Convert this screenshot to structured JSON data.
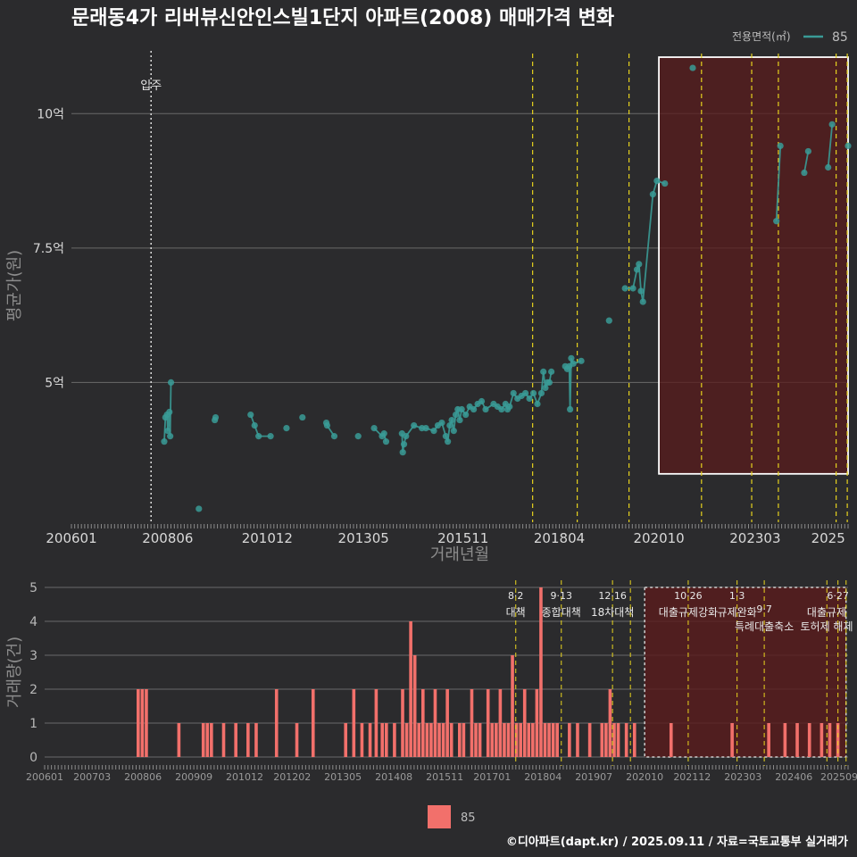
{
  "title": "문래동4가 리버뷰신안인스빌1단지 아파트(2008) 매매가격 변화",
  "caption": "©디아파트(dapt.kr) / 2025.09.11 / 자료=국토교통부 실거래가",
  "colors": {
    "price": "#3a9b96",
    "volume": "#f2706b",
    "policy": "#e6d21e",
    "shade": "#5a1c1c"
  },
  "legend_top": {
    "title": "전용면적(㎡)",
    "label": "85"
  },
  "legend_bottom": {
    "label": "85"
  },
  "chart_data": [
    {
      "type": "scatter",
      "xlabel": "거래년월",
      "ylabel": "평균가(원)",
      "x_ticks": [
        "200601",
        "200806",
        "201012",
        "201305",
        "201511",
        "201804",
        "202010",
        "202303",
        "2025"
      ],
      "y_ticks": [
        {
          "value": 5,
          "label": "5억"
        },
        {
          "value": 7.5,
          "label": "7.5억"
        },
        {
          "value": 10,
          "label": "10억"
        }
      ],
      "ylim": [
        2.4,
        11.2
      ],
      "move_in": {
        "x": 2008.0,
        "label": "입주"
      },
      "policy_lines": [
        2017.58,
        2018.7,
        2020.0,
        2021.82,
        2023.08,
        2023.75,
        2025.2,
        2025.48
      ],
      "highlight_box": {
        "x_from": 2020.75,
        "x_to": 2025.5,
        "y_from": 3.3,
        "y_to": 11.05
      },
      "series": [
        {
          "name": "85",
          "points": [
            [
              2008.33,
              3.9
            ],
            [
              2008.36,
              4.35
            ],
            [
              2008.4,
              4.4
            ],
            [
              2008.42,
              4.1
            ],
            [
              2008.46,
              4.45
            ],
            [
              2008.48,
              4.0
            ],
            [
              2008.5,
              5.0
            ],
            [
              2009.2,
              2.65
            ],
            [
              2009.6,
              4.3
            ],
            [
              2009.62,
              4.35
            ],
            [
              2010.5,
              4.4
            ],
            [
              2010.6,
              4.2
            ],
            [
              2010.7,
              4.0
            ],
            [
              2011.0,
              4.0
            ],
            [
              2011.4,
              4.15
            ],
            [
              2011.8,
              4.35
            ],
            [
              2012.4,
              4.25
            ],
            [
              2012.42,
              4.2
            ],
            [
              2012.6,
              4.0
            ],
            [
              2013.2,
              4.0
            ],
            [
              2013.6,
              4.15
            ],
            [
              2013.8,
              4.0
            ],
            [
              2013.85,
              4.05
            ],
            [
              2013.9,
              3.9
            ],
            [
              2014.3,
              4.05
            ],
            [
              2014.32,
              3.7
            ],
            [
              2014.35,
              3.85
            ],
            [
              2014.4,
              4.0
            ],
            [
              2014.6,
              4.2
            ],
            [
              2014.8,
              4.15
            ],
            [
              2014.9,
              4.15
            ],
            [
              2015.1,
              4.1
            ],
            [
              2015.2,
              4.2
            ],
            [
              2015.3,
              4.25
            ],
            [
              2015.4,
              4.0
            ],
            [
              2015.45,
              3.9
            ],
            [
              2015.5,
              4.2
            ],
            [
              2015.55,
              4.3
            ],
            [
              2015.6,
              4.1
            ],
            [
              2015.65,
              4.4
            ],
            [
              2015.7,
              4.5
            ],
            [
              2015.75,
              4.3
            ],
            [
              2015.8,
              4.5
            ],
            [
              2015.9,
              4.4
            ],
            [
              2016.0,
              4.55
            ],
            [
              2016.1,
              4.5
            ],
            [
              2016.2,
              4.6
            ],
            [
              2016.3,
              4.65
            ],
            [
              2016.4,
              4.5
            ],
            [
              2016.6,
              4.6
            ],
            [
              2016.7,
              4.55
            ],
            [
              2016.8,
              4.5
            ],
            [
              2016.9,
              4.6
            ],
            [
              2016.95,
              4.5
            ],
            [
              2017.0,
              4.55
            ],
            [
              2017.1,
              4.8
            ],
            [
              2017.2,
              4.7
            ],
            [
              2017.3,
              4.75
            ],
            [
              2017.4,
              4.8
            ],
            [
              2017.5,
              4.7
            ],
            [
              2017.6,
              4.8
            ],
            [
              2017.7,
              4.6
            ],
            [
              2017.8,
              4.8
            ],
            [
              2017.85,
              5.2
            ],
            [
              2017.9,
              4.9
            ],
            [
              2017.95,
              5.0
            ],
            [
              2018.0,
              5.0
            ],
            [
              2018.05,
              5.2
            ],
            [
              2018.4,
              5.3
            ],
            [
              2018.45,
              5.25
            ],
            [
              2018.5,
              5.3
            ],
            [
              2018.52,
              4.5
            ],
            [
              2018.55,
              5.45
            ],
            [
              2018.6,
              5.35
            ],
            [
              2018.8,
              5.4
            ],
            [
              2019.5,
              6.15
            ],
            [
              2019.9,
              6.75
            ],
            [
              2020.1,
              6.75
            ],
            [
              2020.2,
              7.1
            ],
            [
              2020.25,
              7.2
            ],
            [
              2020.3,
              6.7
            ],
            [
              2020.35,
              6.5
            ],
            [
              2020.6,
              8.5
            ],
            [
              2020.7,
              8.75
            ],
            [
              2020.9,
              8.7
            ],
            [
              2021.6,
              10.85
            ],
            [
              2023.7,
              8.0
            ],
            [
              2023.8,
              9.4
            ],
            [
              2024.4,
              8.9
            ],
            [
              2024.5,
              9.3
            ],
            [
              2025.0,
              9.0
            ],
            [
              2025.1,
              9.8
            ],
            [
              2025.5,
              9.4
            ]
          ]
        }
      ]
    },
    {
      "type": "bar",
      "xlabel": "",
      "ylabel": "거래량(건)",
      "x_ticks": [
        "200601",
        "200703",
        "200806",
        "200909",
        "201012",
        "201202",
        "201305",
        "201408",
        "201511",
        "201701",
        "201804",
        "201907",
        "202010",
        "202112",
        "202303",
        "202406",
        "202509"
      ],
      "y_ticks": [
        0,
        1,
        2,
        3,
        4,
        5
      ],
      "ylim": [
        0,
        5
      ],
      "highlight_box": {
        "x_from": 2020.75,
        "x_to": 2025.7,
        "y_from": 0,
        "y_to": 5
      },
      "policy_lines": [
        {
          "x": 2017.58,
          "date": "8·2",
          "label": "대책"
        },
        {
          "x": 2018.7,
          "date": "9·13",
          "label": "종합대책"
        },
        {
          "x": 2019.96,
          "date": "12·16",
          "label": "18차대책"
        },
        {
          "x": 2020.4,
          "date": "",
          "label": ""
        },
        {
          "x": 2021.82,
          "date": "10·26",
          "label": "대출규제강화"
        },
        {
          "x": 2023.02,
          "date": "1·3",
          "label": "규제완화"
        },
        {
          "x": 2023.69,
          "date": "9·7",
          "label": "특례대출축소"
        },
        {
          "x": 2025.23,
          "date": "",
          "label": ""
        },
        {
          "x": 2025.5,
          "date": "6·27",
          "label": "대출규제"
        },
        {
          "x": 2025.7,
          "date": "",
          "label": "토허제 해제"
        }
      ],
      "series": [
        {
          "name": "85",
          "bars": [
            [
              2008.3,
              2
            ],
            [
              2008.4,
              2
            ],
            [
              2008.5,
              2
            ],
            [
              2009.3,
              1
            ],
            [
              2009.9,
              1
            ],
            [
              2010.0,
              1
            ],
            [
              2010.1,
              1
            ],
            [
              2010.4,
              1
            ],
            [
              2010.7,
              1
            ],
            [
              2011.0,
              1
            ],
            [
              2011.2,
              1
            ],
            [
              2011.7,
              2
            ],
            [
              2012.2,
              1
            ],
            [
              2012.6,
              2
            ],
            [
              2013.4,
              1
            ],
            [
              2013.6,
              2
            ],
            [
              2013.8,
              1
            ],
            [
              2014.0,
              1
            ],
            [
              2014.15,
              2
            ],
            [
              2014.3,
              1
            ],
            [
              2014.4,
              1
            ],
            [
              2014.6,
              1
            ],
            [
              2014.8,
              2
            ],
            [
              2014.9,
              1
            ],
            [
              2015.0,
              4
            ],
            [
              2015.1,
              3
            ],
            [
              2015.2,
              1
            ],
            [
              2015.3,
              2
            ],
            [
              2015.4,
              1
            ],
            [
              2015.5,
              1
            ],
            [
              2015.6,
              2
            ],
            [
              2015.7,
              1
            ],
            [
              2015.8,
              1
            ],
            [
              2015.9,
              2
            ],
            [
              2016.0,
              1
            ],
            [
              2016.2,
              1
            ],
            [
              2016.3,
              1
            ],
            [
              2016.5,
              2
            ],
            [
              2016.6,
              1
            ],
            [
              2016.7,
              1
            ],
            [
              2016.9,
              2
            ],
            [
              2017.0,
              1
            ],
            [
              2017.1,
              1
            ],
            [
              2017.2,
              2
            ],
            [
              2017.3,
              1
            ],
            [
              2017.4,
              1
            ],
            [
              2017.5,
              3
            ],
            [
              2017.6,
              1
            ],
            [
              2017.7,
              1
            ],
            [
              2017.8,
              2
            ],
            [
              2017.9,
              1
            ],
            [
              2018.0,
              1
            ],
            [
              2018.1,
              2
            ],
            [
              2018.2,
              5
            ],
            [
              2018.3,
              1
            ],
            [
              2018.4,
              1
            ],
            [
              2018.5,
              1
            ],
            [
              2018.6,
              1
            ],
            [
              2018.9,
              1
            ],
            [
              2019.1,
              1
            ],
            [
              2019.4,
              1
            ],
            [
              2019.7,
              1
            ],
            [
              2019.8,
              1
            ],
            [
              2019.9,
              2
            ],
            [
              2020.0,
              1
            ],
            [
              2020.1,
              1
            ],
            [
              2020.3,
              1
            ],
            [
              2020.5,
              1
            ],
            [
              2021.4,
              1
            ],
            [
              2022.9,
              1
            ],
            [
              2023.8,
              1
            ],
            [
              2024.2,
              1
            ],
            [
              2024.5,
              1
            ],
            [
              2024.8,
              1
            ],
            [
              2025.1,
              1
            ],
            [
              2025.3,
              1
            ],
            [
              2025.5,
              1
            ]
          ]
        }
      ]
    }
  ]
}
